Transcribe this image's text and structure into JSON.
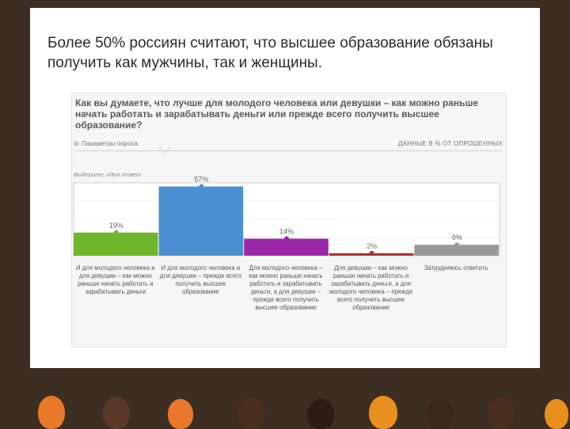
{
  "slide": {
    "title": "Более 50% россиян считают, что высшее образование обязаны получить как мужчины, так и женщины."
  },
  "card": {
    "question": "Как вы думаете, что лучше для молодого человека или девушки – как можно раньше начать работать и зарабатывать деньги или прежде всего получить высшее образование?",
    "filter_left": "Параметры опроса",
    "filter_right": "ДАННЫЕ В % ОТ ОПРОШЕННЫХ",
    "hint": "Выберите, один ответ"
  },
  "chart_data": {
    "type": "bar",
    "categories": [
      "И для молодого человека и для девушки – как можно раньше начать работать и зарабатывать деньги",
      "И для молодого человека и для девушки – прежде всего получить высшее образование",
      "Для молодого человека – как можно раньше начать работать и зарабатывать деньги, а для девушки – прежде всего получить высшее образование",
      "Для девушки – как можно раньше начать работать и зарабатывать деньги, а для молодого человека – прежде всего получить высшее образование",
      "Затрудняюсь ответить"
    ],
    "values": [
      19,
      57,
      14,
      2,
      9
    ],
    "value_labels": [
      "19%",
      "57%",
      "14%",
      "2%",
      "9%"
    ],
    "colors": [
      "#6fb62c",
      "#4a8fd2",
      "#9b27a8",
      "#b03030",
      "#9a9a9a"
    ],
    "ylim": [
      0,
      60
    ],
    "grid": "horizontal"
  }
}
